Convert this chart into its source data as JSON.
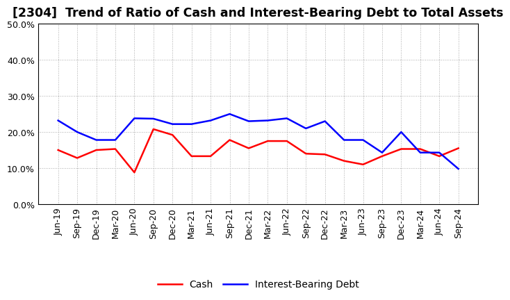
{
  "title": "[2304]  Trend of Ratio of Cash and Interest-Bearing Debt to Total Assets",
  "x_labels": [
    "Jun-19",
    "Sep-19",
    "Dec-19",
    "Mar-20",
    "Jun-20",
    "Sep-20",
    "Dec-20",
    "Mar-21",
    "Jun-21",
    "Sep-21",
    "Dec-21",
    "Mar-22",
    "Jun-22",
    "Sep-22",
    "Dec-22",
    "Mar-23",
    "Jun-23",
    "Sep-23",
    "Dec-23",
    "Mar-24",
    "Jun-24",
    "Sep-24"
  ],
  "cash": [
    0.15,
    0.128,
    0.15,
    0.153,
    0.088,
    0.208,
    0.192,
    0.133,
    0.133,
    0.178,
    0.155,
    0.175,
    0.175,
    0.14,
    0.138,
    0.12,
    0.11,
    0.133,
    0.153,
    0.153,
    0.133,
    0.155
  ],
  "interest_bearing_debt": [
    0.232,
    0.2,
    0.178,
    0.178,
    0.238,
    0.237,
    0.222,
    0.222,
    0.232,
    0.25,
    0.23,
    0.232,
    0.238,
    0.21,
    0.23,
    0.178,
    0.178,
    0.143,
    0.2,
    0.143,
    0.143,
    0.098
  ],
  "cash_color": "#ff0000",
  "debt_color": "#0000ff",
  "background_color": "#ffffff",
  "plot_bg_color": "#ffffff",
  "grid_color": "#aaaaaa",
  "ylim": [
    0.0,
    0.5
  ],
  "yticks": [
    0.0,
    0.1,
    0.2,
    0.3,
    0.4,
    0.5
  ],
  "legend_cash": "Cash",
  "legend_debt": "Interest-Bearing Debt",
  "title_fontsize": 12.5,
  "tick_fontsize": 9,
  "legend_fontsize": 10,
  "line_width": 1.8
}
